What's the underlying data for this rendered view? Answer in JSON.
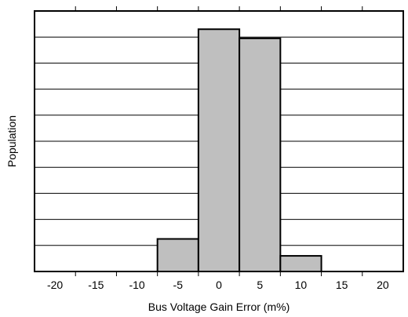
{
  "chart_data": {
    "type": "bar",
    "title": "",
    "xlabel": "Bus Voltage Gain Error (m%)",
    "ylabel": "Population",
    "xlim": [
      -22.5,
      22.5
    ],
    "ylim": [
      0,
      10
    ],
    "x_ticks": [
      -20,
      -15,
      -10,
      -5,
      0,
      5,
      10,
      15,
      20
    ],
    "x_tick_labels": [
      "-20",
      "-15",
      "-10",
      "-5",
      "0",
      "5",
      "10",
      "15",
      "20"
    ],
    "y_tick_labels_shown": false,
    "grid": "horizontal",
    "bins": [
      {
        "x0": -7.5,
        "x1": -2.5,
        "value": 1.25
      },
      {
        "x0": -2.5,
        "x1": 2.5,
        "value": 9.3
      },
      {
        "x0": 2.5,
        "x1": 7.5,
        "value": 8.95
      },
      {
        "x0": 7.5,
        "x1": 12.5,
        "value": 0.6
      }
    ],
    "bar_color": "#bfbfbf",
    "edge_color": "#000000"
  }
}
